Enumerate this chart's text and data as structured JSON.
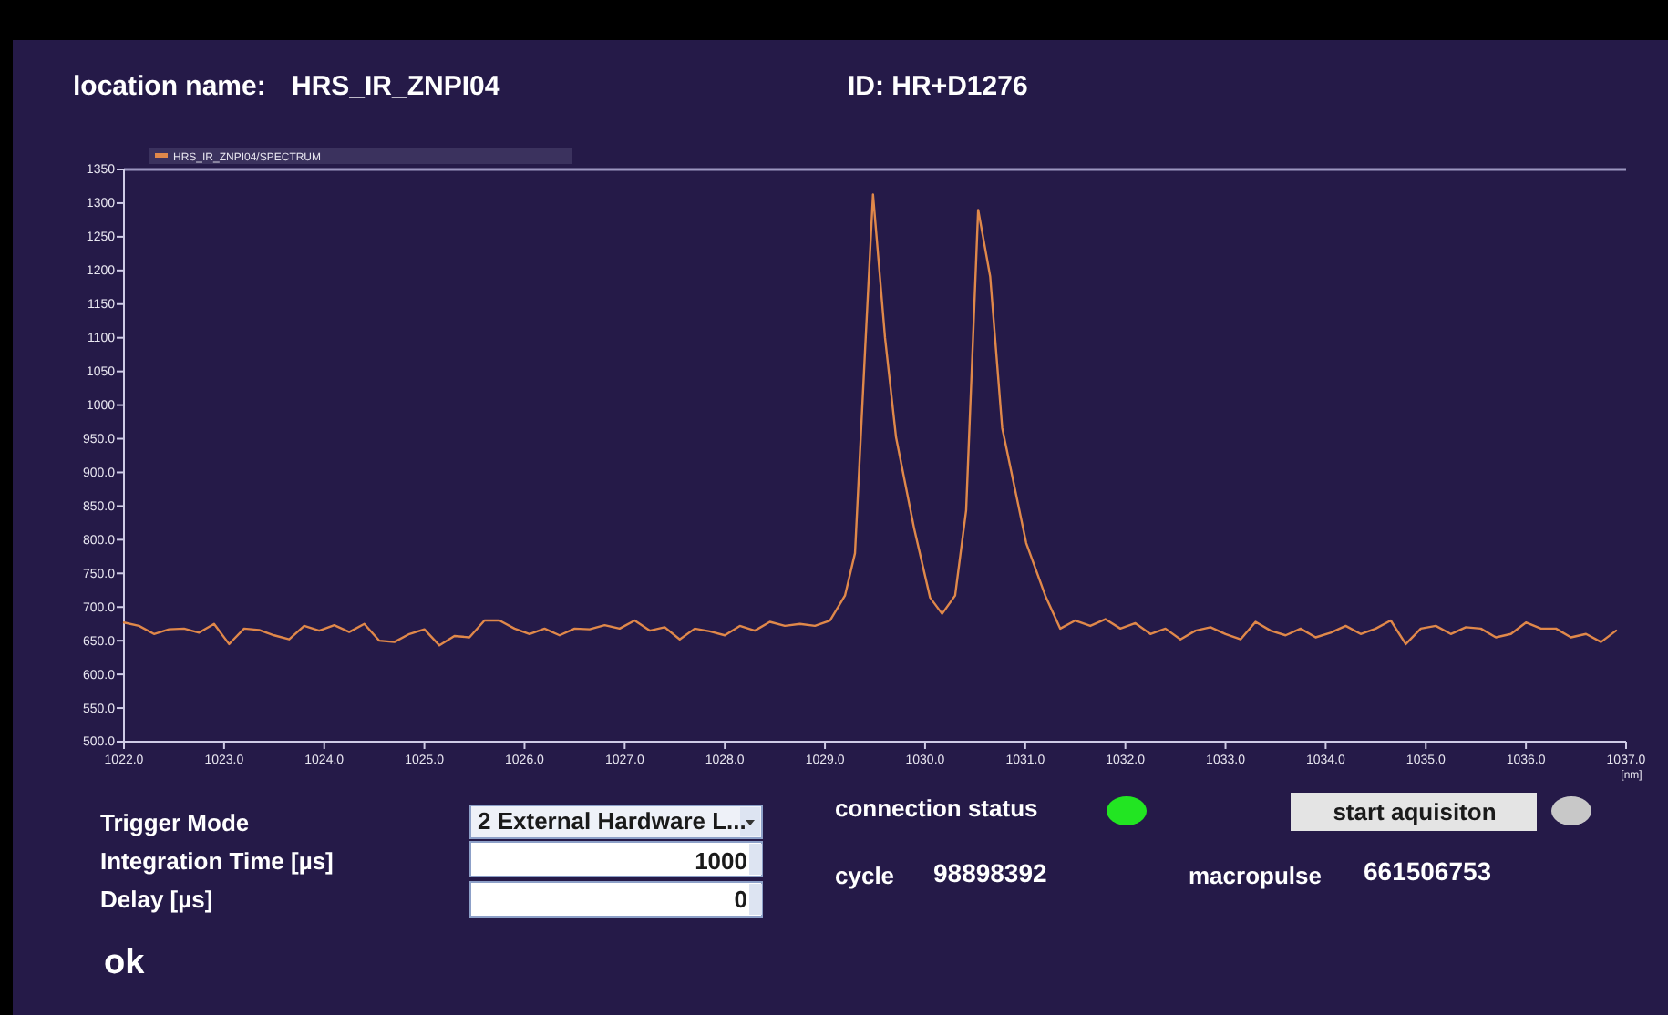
{
  "chart_data": {
    "type": "line",
    "xlabel": "[nm]",
    "legend": "top left",
    "annotations": [
      "location name:",
      "HRS_IR_ZNPI04",
      "ID:  HR+D1276",
      "Trigger Mode",
      "Integration Time [µs]",
      "Delay [µs]",
      "ok",
      "2 External Hardware L...",
      "1000",
      "0",
      "connection status",
      "start aquisiton",
      "cycle",
      "98898392",
      "macropulse",
      "661506753"
    ],
    "xlim": [
      1022,
      1037
    ],
    "ylim": [
      500,
      1350
    ],
    "xticks": [
      {
        "value": 1022,
        "label": "1022.0"
      },
      {
        "value": 1023,
        "label": "1023.0"
      },
      {
        "value": 1024,
        "label": "1024.0"
      },
      {
        "value": 1025,
        "label": "1025.0"
      },
      {
        "value": 1026,
        "label": "1026.0"
      },
      {
        "value": 1027,
        "label": "1027.0"
      },
      {
        "value": 1028,
        "label": "1028.0"
      },
      {
        "value": 1029,
        "label": "1029.0"
      },
      {
        "value": 1030,
        "label": "1030.0"
      },
      {
        "value": 1031,
        "label": "1031.0"
      },
      {
        "value": 1032,
        "label": "1032.0"
      },
      {
        "value": 1033,
        "label": "1033.0"
      },
      {
        "value": 1034,
        "label": "1034.0"
      },
      {
        "value": 1035,
        "label": "1035.0"
      },
      {
        "value": 1036,
        "label": "1036.0"
      },
      {
        "value": 1037,
        "label": "1037.0"
      }
    ],
    "yticks": [
      {
        "value": 500,
        "label": "500.0"
      },
      {
        "value": 550,
        "label": "550.0"
      },
      {
        "value": 600,
        "label": "600.0"
      },
      {
        "value": 650,
        "label": "650.0"
      },
      {
        "value": 700,
        "label": "700.0"
      },
      {
        "value": 750,
        "label": "750.0"
      },
      {
        "value": 800,
        "label": "800.0"
      },
      {
        "value": 850,
        "label": "850.0"
      },
      {
        "value": 900,
        "label": "900.0"
      },
      {
        "value": 950,
        "label": "950.0"
      },
      1000,
      1050,
      1100,
      1150,
      1200,
      1250,
      1300,
      1350
    ],
    "x": [
      1022.0,
      1022.15,
      1022.3,
      1022.45,
      1022.6,
      1022.75,
      1022.9,
      1023.05,
      1023.2,
      1023.35,
      1023.5,
      1023.65,
      1023.8,
      1023.95,
      1024.1,
      1024.25,
      1024.4,
      1024.55,
      1024.7,
      1024.85,
      1025.0,
      1025.15,
      1025.3,
      1025.45,
      1025.6,
      1025.75,
      1025.9,
      1026.05,
      1026.2,
      1026.35,
      1026.5,
      1026.65,
      1026.8,
      1026.95,
      1027.1,
      1027.25,
      1027.4,
      1027.55,
      1027.7,
      1027.85,
      1028.0,
      1028.15,
      1028.3,
      1028.45,
      1028.6,
      1028.75,
      1028.9,
      1029.05,
      1029.2,
      1029.3,
      1029.4,
      1029.48,
      1029.6,
      1029.71,
      1029.89,
      1030.05,
      1030.17,
      1030.3,
      1030.41,
      1030.53,
      1030.65,
      1030.77,
      1031.01,
      1031.2,
      1031.35,
      1031.5,
      1031.65,
      1031.8,
      1031.95,
      1032.1,
      1032.25,
      1032.4,
      1032.55,
      1032.7,
      1032.85,
      1033.0,
      1033.15,
      1033.3,
      1033.45,
      1033.6,
      1033.75,
      1033.9,
      1034.05,
      1034.2,
      1034.35,
      1034.5,
      1034.65,
      1034.8,
      1034.95,
      1035.1,
      1035.25,
      1035.4,
      1035.55,
      1035.7,
      1035.85,
      1036.0,
      1036.15,
      1036.3,
      1036.45,
      1036.6,
      1036.75,
      1036.9
    ],
    "series": [
      {
        "name": "HRS_IR_ZNPI04/SPECTRUM",
        "color": "#e0884a",
        "values": [
          677,
          672,
          660,
          667,
          668,
          662,
          675,
          645,
          668,
          666,
          658,
          652,
          672,
          665,
          673,
          663,
          675,
          650,
          648,
          660,
          667,
          643,
          657,
          655,
          680,
          680,
          668,
          660,
          668,
          658,
          668,
          667,
          673,
          668,
          680,
          665,
          670,
          652,
          668,
          664,
          658,
          672,
          665,
          678,
          672,
          675,
          672,
          680,
          717,
          780,
          1080,
          1313,
          1100,
          952,
          817,
          714,
          690,
          717,
          844,
          1290,
          1191,
          966,
          795,
          717,
          668,
          680,
          672,
          682,
          668,
          676,
          660,
          668,
          652,
          665,
          670,
          660,
          652,
          678,
          665,
          658,
          668,
          655,
          662,
          672,
          660,
          668,
          680,
          645,
          668,
          672,
          660,
          670,
          668,
          655,
          660,
          677,
          668,
          668,
          655,
          660,
          648,
          665
        ]
      }
    ]
  }
}
